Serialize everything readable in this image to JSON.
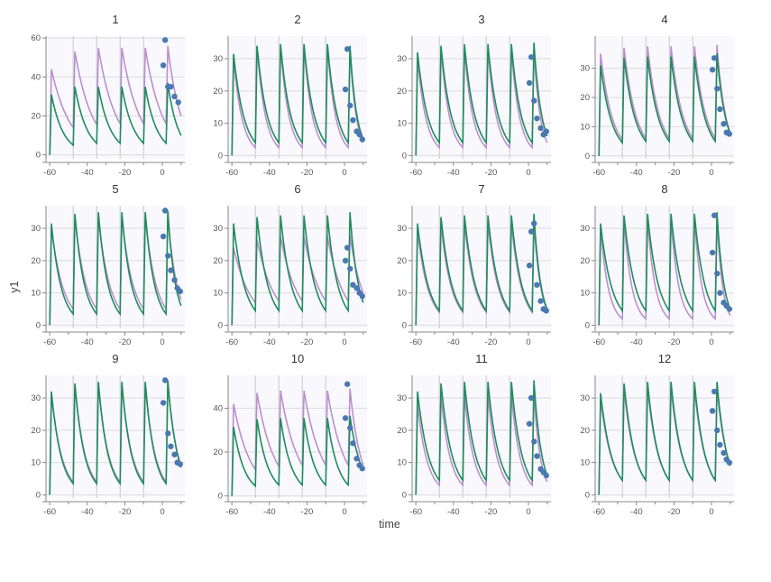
{
  "figure": {
    "xlabel": "time",
    "ylabel": "y1"
  },
  "colors": {
    "purple": "#bb8fce",
    "green": "#1e8c5c",
    "points": "#4a78b0",
    "panel_bg": "#f9f9fd",
    "grid": "#dcdcdc",
    "vline": "#c8c8c8"
  },
  "chart_data": [
    {
      "type": "line",
      "title": "1",
      "xlim": [
        -62,
        12
      ],
      "ylim": [
        -2,
        61
      ],
      "x_ticks": [
        -60,
        -40,
        -20,
        0
      ],
      "y_ticks": [
        0,
        20,
        40,
        60
      ],
      "dose_times": [
        -60,
        -47.5,
        -35,
        -22.5,
        -10,
        2
      ],
      "series": [
        {
          "color": "purple",
          "peaks": [
            44,
            53,
            55,
            55,
            55,
            56
          ],
          "decay": [
            14,
            15.5,
            16,
            16,
            16,
            16
          ],
          "end": 20
        },
        {
          "color": "green",
          "peaks": [
            31,
            35,
            35,
            35,
            35,
            37
          ],
          "decay": [
            5,
            6,
            6,
            6,
            6,
            6
          ],
          "end": 10
        }
      ],
      "points": [
        [
          0.5,
          46
        ],
        [
          1.5,
          59
        ],
        [
          3,
          35
        ],
        [
          4.5,
          35
        ],
        [
          6.5,
          30
        ],
        [
          8.5,
          27
        ]
      ]
    },
    {
      "type": "line",
      "title": "2",
      "xlim": [
        -62,
        12
      ],
      "ylim": [
        -1,
        37
      ],
      "x_ticks": [
        -60,
        -40,
        -20,
        0
      ],
      "y_ticks": [
        0,
        10,
        20,
        30
      ],
      "dose_times": [
        -60,
        -47.5,
        -35,
        -22.5,
        -10,
        2
      ],
      "series": [
        {
          "color": "purple",
          "peaks": [
            30,
            33.5,
            34,
            34,
            34,
            33
          ],
          "decay": [
            2.5,
            2.5,
            2.5,
            2.5,
            2.5,
            2.5
          ],
          "end": 4
        },
        {
          "color": "green",
          "peaks": [
            31.5,
            34,
            34.5,
            34.5,
            34.5,
            34
          ],
          "decay": [
            4,
            4,
            4,
            4,
            4,
            4
          ],
          "end": 5
        }
      ],
      "points": [
        [
          0.5,
          20.5
        ],
        [
          1.5,
          33
        ],
        [
          3,
          15.5
        ],
        [
          4.5,
          11
        ],
        [
          6.5,
          7.5
        ],
        [
          8,
          6.5
        ],
        [
          9.5,
          5
        ]
      ]
    },
    {
      "type": "line",
      "title": "3",
      "xlim": [
        -62,
        12
      ],
      "ylim": [
        -1,
        37
      ],
      "x_ticks": [
        -60,
        -40,
        -20,
        0
      ],
      "y_ticks": [
        0,
        10,
        20,
        30
      ],
      "dose_times": [
        -60,
        -47.5,
        -35,
        -22.5,
        -10,
        2
      ],
      "series": [
        {
          "color": "purple",
          "peaks": [
            30,
            33,
            33,
            33,
            33,
            33
          ],
          "decay": [
            2.5,
            2.5,
            2.5,
            2.5,
            2.5,
            2.5
          ],
          "end": 4
        },
        {
          "color": "green",
          "peaks": [
            32,
            34,
            34.5,
            34.5,
            34.5,
            35
          ],
          "decay": [
            4,
            4,
            4,
            4,
            4,
            4
          ],
          "end": 6
        }
      ],
      "points": [
        [
          0.5,
          22.5
        ],
        [
          1.5,
          30.5
        ],
        [
          3,
          17
        ],
        [
          4.5,
          11.5
        ],
        [
          6.5,
          8.5
        ],
        [
          8,
          6.5
        ],
        [
          9.5,
          7.5
        ]
      ]
    },
    {
      "type": "line",
      "title": "4",
      "xlim": [
        -62,
        12
      ],
      "ylim": [
        -1,
        41
      ],
      "x_ticks": [
        -60,
        -40,
        -20,
        0
      ],
      "y_ticks": [
        0,
        10,
        20,
        30
      ],
      "dose_times": [
        -60,
        -47.5,
        -35,
        -22.5,
        -10,
        2
      ],
      "series": [
        {
          "color": "purple",
          "peaks": [
            35,
            37,
            37.5,
            37.5,
            37.5,
            38
          ],
          "decay": [
            5.5,
            6,
            6,
            6,
            6,
            6
          ],
          "end": 8
        },
        {
          "color": "green",
          "peaks": [
            31,
            33.5,
            34,
            34,
            34,
            35
          ],
          "decay": [
            4.5,
            5,
            5,
            5,
            5,
            5
          ],
          "end": 7.5
        }
      ],
      "points": [
        [
          0.5,
          29.5
        ],
        [
          1.5,
          33.5
        ],
        [
          3,
          23
        ],
        [
          4.5,
          16
        ],
        [
          6.5,
          11
        ],
        [
          8,
          8
        ],
        [
          9.5,
          7.5
        ]
      ]
    },
    {
      "type": "line",
      "title": "5",
      "xlim": [
        -62,
        12
      ],
      "ylim": [
        -1,
        37
      ],
      "x_ticks": [
        -60,
        -40,
        -20,
        0
      ],
      "y_ticks": [
        0,
        10,
        20,
        30
      ],
      "dose_times": [
        -60,
        -47.5,
        -35,
        -22.5,
        -10,
        2
      ],
      "series": [
        {
          "color": "purple",
          "peaks": [
            30,
            33,
            33.5,
            33.5,
            33.5,
            34
          ],
          "decay": [
            5,
            5,
            5,
            5,
            5,
            5
          ],
          "end": 8
        },
        {
          "color": "green",
          "peaks": [
            31.5,
            34.5,
            35,
            35,
            35,
            35.5
          ],
          "decay": [
            3.5,
            3.5,
            3.5,
            3.5,
            3.5,
            3.5
          ],
          "end": 6
        }
      ],
      "points": [
        [
          0.5,
          27.5
        ],
        [
          1.5,
          35.5
        ],
        [
          3,
          21.5
        ],
        [
          4.5,
          17
        ],
        [
          6.5,
          14
        ],
        [
          8,
          11.5
        ],
        [
          9.5,
          10.5
        ]
      ]
    },
    {
      "type": "line",
      "title": "6",
      "xlim": [
        -62,
        12
      ],
      "ylim": [
        -1,
        37
      ],
      "x_ticks": [
        -60,
        -40,
        -20,
        0
      ],
      "y_ticks": [
        0,
        10,
        20,
        30
      ],
      "dose_times": [
        -60,
        -47.5,
        -35,
        -22.5,
        -10,
        2
      ],
      "series": [
        {
          "color": "purple",
          "peaks": [
            24,
            26.5,
            27.5,
            27.5,
            27.5,
            28
          ],
          "decay": [
            7,
            7.5,
            7.5,
            7.5,
            7.5,
            7.5
          ],
          "end": 10
        },
        {
          "color": "green",
          "peaks": [
            31.5,
            33.5,
            34,
            34,
            34,
            35
          ],
          "decay": [
            4.5,
            4.5,
            4.5,
            4.5,
            4.5,
            4.5
          ],
          "end": 7
        }
      ],
      "points": [
        [
          0.5,
          20
        ],
        [
          1.5,
          24
        ],
        [
          3,
          17.5
        ],
        [
          4.5,
          12.5
        ],
        [
          6.5,
          11.5
        ],
        [
          8,
          10
        ],
        [
          9.5,
          9
        ]
      ]
    },
    {
      "type": "line",
      "title": "7",
      "xlim": [
        -62,
        12
      ],
      "ylim": [
        -1,
        37
      ],
      "x_ticks": [
        -60,
        -40,
        -20,
        0
      ],
      "y_ticks": [
        0,
        10,
        20,
        30
      ],
      "dose_times": [
        -60,
        -47.5,
        -35,
        -22.5,
        -10,
        2
      ],
      "series": [
        {
          "color": "purple",
          "peaks": [
            29,
            31,
            31.5,
            31.5,
            31.5,
            32
          ],
          "decay": [
            4,
            4,
            4,
            4,
            4,
            4
          ],
          "end": 4.5
        },
        {
          "color": "green",
          "peaks": [
            31.5,
            33.5,
            34,
            34,
            34,
            34.5
          ],
          "decay": [
            4.5,
            4.5,
            4.5,
            4.5,
            4.5,
            4.5
          ],
          "end": 5
        }
      ],
      "points": [
        [
          0.5,
          18.5
        ],
        [
          1.5,
          29
        ],
        [
          3,
          31.5
        ],
        [
          4.5,
          12.5
        ],
        [
          6.5,
          7.5
        ],
        [
          8,
          5
        ],
        [
          9.5,
          4.5
        ]
      ]
    },
    {
      "type": "line",
      "title": "8",
      "xlim": [
        -62,
        12
      ],
      "ylim": [
        -1,
        37
      ],
      "x_ticks": [
        -60,
        -40,
        -20,
        0
      ],
      "y_ticks": [
        0,
        10,
        20,
        30
      ],
      "dose_times": [
        -60,
        -47.5,
        -35,
        -22.5,
        -10,
        2
      ],
      "series": [
        {
          "color": "purple",
          "peaks": [
            30,
            32.5,
            33,
            33,
            33,
            33.5
          ],
          "decay": [
            2,
            2,
            2,
            2,
            2,
            2
          ],
          "end": 3
        },
        {
          "color": "green",
          "peaks": [
            31.5,
            34,
            34.5,
            34.5,
            34.5,
            35
          ],
          "decay": [
            4.5,
            4.5,
            4.5,
            4.5,
            4.5,
            4.5
          ],
          "end": 5
        }
      ],
      "points": [
        [
          0.5,
          22.5
        ],
        [
          1.5,
          34
        ],
        [
          3,
          16
        ],
        [
          4.5,
          10
        ],
        [
          6.5,
          7
        ],
        [
          8,
          6
        ],
        [
          9.5,
          5
        ]
      ]
    },
    {
      "type": "line",
      "title": "9",
      "xlim": [
        -62,
        12
      ],
      "ylim": [
        -1,
        37
      ],
      "x_ticks": [
        -60,
        -40,
        -20,
        0
      ],
      "y_ticks": [
        0,
        10,
        20,
        30
      ],
      "dose_times": [
        -60,
        -47.5,
        -35,
        -22.5,
        -10,
        2
      ],
      "series": [
        {
          "color": "purple",
          "peaks": [
            31,
            33.5,
            34,
            34,
            34,
            34.5
          ],
          "decay": [
            4,
            4,
            4,
            4,
            4,
            4
          ],
          "end": 9
        },
        {
          "color": "green",
          "peaks": [
            32,
            34.5,
            35,
            35,
            35,
            35.5
          ],
          "decay": [
            3.5,
            3.5,
            3.5,
            3.5,
            3.5,
            3.5
          ],
          "end": 8.5
        }
      ],
      "points": [
        [
          0.5,
          28.5
        ],
        [
          1.5,
          35.5
        ],
        [
          3,
          19
        ],
        [
          4.5,
          15
        ],
        [
          6.5,
          12.5
        ],
        [
          8,
          10
        ],
        [
          9.5,
          9.5
        ]
      ]
    },
    {
      "type": "line",
      "title": "10",
      "xlim": [
        -62,
        12
      ],
      "ylim": [
        -1,
        55
      ],
      "x_ticks": [
        -60,
        -40,
        -20,
        0
      ],
      "y_ticks": [
        0,
        20,
        40
      ],
      "dose_times": [
        -60,
        -47.5,
        -35,
        -22.5,
        -10,
        2
      ],
      "series": [
        {
          "color": "purple",
          "peaks": [
            42,
            47,
            48,
            48,
            48,
            49
          ],
          "decay": [
            12,
            13.5,
            14,
            14,
            14,
            14
          ],
          "end": 14
        },
        {
          "color": "green",
          "peaks": [
            31.5,
            35,
            35.5,
            35.5,
            35.5,
            36.5
          ],
          "decay": [
            4.5,
            5,
            5,
            5,
            5,
            5
          ],
          "end": 11.5
        }
      ],
      "points": [
        [
          0.5,
          35.5
        ],
        [
          1.5,
          51
        ],
        [
          3,
          31
        ],
        [
          4.5,
          24
        ],
        [
          6.5,
          17
        ],
        [
          8,
          14
        ],
        [
          9.5,
          12.5
        ]
      ]
    },
    {
      "type": "line",
      "title": "11",
      "xlim": [
        -62,
        12
      ],
      "ylim": [
        -1,
        37
      ],
      "x_ticks": [
        -60,
        -40,
        -20,
        0
      ],
      "y_ticks": [
        0,
        10,
        20,
        30
      ],
      "dose_times": [
        -60,
        -47.5,
        -35,
        -22.5,
        -10,
        2
      ],
      "series": [
        {
          "color": "purple",
          "peaks": [
            28,
            30.5,
            31,
            31,
            31,
            31.5
          ],
          "decay": [
            3,
            3,
            3,
            3,
            3,
            3
          ],
          "end": 4
        },
        {
          "color": "green",
          "peaks": [
            32,
            34.5,
            35,
            35,
            35,
            35.5
          ],
          "decay": [
            4.5,
            4.5,
            4.5,
            4.5,
            4.5,
            4.5
          ],
          "end": 6
        }
      ],
      "points": [
        [
          0.5,
          22
        ],
        [
          1.5,
          30
        ],
        [
          3,
          16.5
        ],
        [
          4.5,
          12
        ],
        [
          6.5,
          8
        ],
        [
          8,
          7
        ],
        [
          9.5,
          6
        ]
      ]
    },
    {
      "type": "line",
      "title": "12",
      "xlim": [
        -62,
        12
      ],
      "ylim": [
        -1,
        37
      ],
      "x_ticks": [
        -60,
        -40,
        -20,
        0
      ],
      "y_ticks": [
        0,
        10,
        20,
        30
      ],
      "dose_times": [
        -60,
        -47.5,
        -35,
        -22.5,
        -10,
        2
      ],
      "series": [
        {
          "color": "purple",
          "peaks": [
            29.5,
            32.5,
            33,
            33,
            33,
            33
          ],
          "decay": [
            4.5,
            4.5,
            4.5,
            4.5,
            4.5,
            4.5
          ],
          "end": 9
        },
        {
          "color": "green",
          "peaks": [
            31.5,
            34.5,
            35,
            35,
            35,
            35
          ],
          "decay": [
            4.5,
            4.5,
            4.5,
            4.5,
            4.5,
            4.5
          ],
          "end": 9
        }
      ],
      "points": [
        [
          0.5,
          26
        ],
        [
          1.5,
          32
        ],
        [
          3,
          20
        ],
        [
          4.5,
          15.5
        ],
        [
          6.5,
          13
        ],
        [
          8,
          11
        ],
        [
          9.5,
          10
        ]
      ]
    }
  ]
}
